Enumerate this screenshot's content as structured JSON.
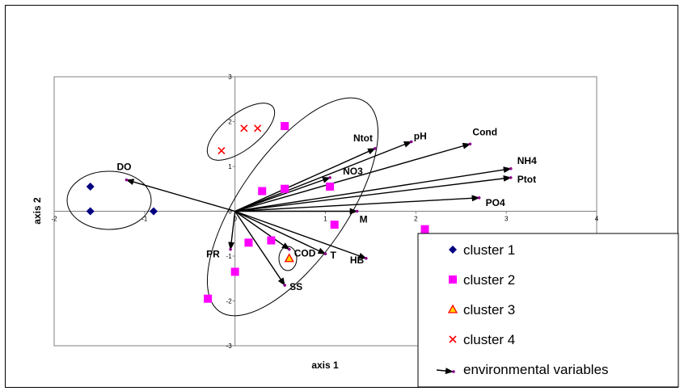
{
  "chart_data": {
    "type": "scatter",
    "title": "",
    "xlabel": "axis 1",
    "ylabel": "axis 2",
    "xlim": [
      -2,
      4
    ],
    "ylim": [
      -3,
      3
    ],
    "x_ticks": [
      "-2",
      "-1",
      "0",
      "1",
      "2",
      "3",
      "4"
    ],
    "y_ticks": [
      "-3",
      "-2",
      "-1",
      "0",
      "1",
      "2",
      "3"
    ],
    "colors": {
      "cluster1": "#000080",
      "cluster2": "#ff00ff",
      "cluster3_fill": "#ffd700",
      "cluster3_edge": "#ff0000",
      "cluster4": "#ff0000",
      "arrow": "#000000"
    },
    "series": [
      {
        "name": "cluster 1",
        "marker": "diamond",
        "points": [
          [
            -1.6,
            0.55
          ],
          [
            -1.6,
            0.0
          ],
          [
            -0.9,
            0.0
          ]
        ]
      },
      {
        "name": "cluster 2",
        "marker": "square",
        "points": [
          [
            0.55,
            1.9
          ],
          [
            0.3,
            0.45
          ],
          [
            0.55,
            0.5
          ],
          [
            1.05,
            0.55
          ],
          [
            1.1,
            -0.3
          ],
          [
            2.1,
            -0.4
          ],
          [
            0.15,
            -0.7
          ],
          [
            0.4,
            -0.65
          ],
          [
            0.0,
            -1.35
          ],
          [
            -0.3,
            -1.95
          ]
        ]
      },
      {
        "name": "cluster 3",
        "marker": "triangle",
        "points": [
          [
            0.6,
            -1.05
          ]
        ]
      },
      {
        "name": "cluster 4",
        "marker": "x",
        "points": [
          [
            0.1,
            1.85
          ],
          [
            0.25,
            1.85
          ],
          [
            -0.15,
            1.35
          ]
        ]
      },
      {
        "name": "environmental variables",
        "marker": "arrow",
        "points": []
      }
    ],
    "vectors": [
      {
        "label": "DO",
        "x": -1.2,
        "y": 0.7
      },
      {
        "label": "Ntot",
        "x": 1.55,
        "y": 1.4
      },
      {
        "label": "pH",
        "x": 1.95,
        "y": 1.55
      },
      {
        "label": "Cond",
        "x": 2.6,
        "y": 1.5
      },
      {
        "label": "NH4",
        "x": 3.05,
        "y": 0.95
      },
      {
        "label": "Ptot",
        "x": 3.05,
        "y": 0.75
      },
      {
        "label": "NO3",
        "x": 1.05,
        "y": 0.75
      },
      {
        "label": "PO4",
        "x": 2.7,
        "y": 0.3
      },
      {
        "label": "M",
        "x": 1.35,
        "y": 0.0
      },
      {
        "label": "PR",
        "x": -0.05,
        "y": -0.85
      },
      {
        "label": "COD",
        "x": 0.6,
        "y": -0.85
      },
      {
        "label": "T",
        "x": 1.0,
        "y": -0.95
      },
      {
        "label": "HB",
        "x": 1.45,
        "y": -1.05
      },
      {
        "label": "SS",
        "x": 0.55,
        "y": -1.65
      }
    ],
    "legend": {
      "placement": "bottom-right",
      "entries": [
        "cluster 1",
        "cluster 2",
        "cluster 3",
        "cluster 4",
        "environmental variables"
      ]
    },
    "grid": false
  }
}
